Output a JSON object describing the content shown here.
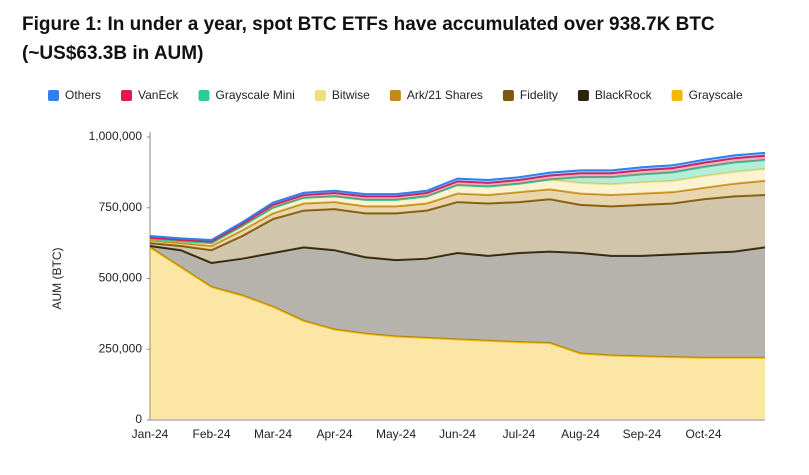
{
  "chart_data": {
    "type": "stacked_area",
    "title": "Figure 1: In under a year, spot BTC ETFs have accumulated over 938.7K BTC (~US$63.3B in AUM)",
    "y_label": "AUM (BTC)",
    "categories": [
      "Jan-24",
      null,
      "Feb-24",
      null,
      "Mar-24",
      null,
      "Apr-24",
      null,
      "May-24",
      null,
      "Jun-24",
      null,
      "Jul-24",
      null,
      "Aug-24",
      null,
      "Sep-24",
      null,
      "Oct-24",
      null,
      null
    ],
    "ylim": [
      0,
      1000000
    ],
    "yticks": [
      0,
      {
        "value": 250000,
        "label": "250,000"
      },
      {
        "value": 500000,
        "label": "500,000"
      },
      {
        "value": 750000,
        "label": "750,000"
      },
      {
        "value": 1000000,
        "label": "1,000,000"
      }
    ],
    "series": [
      {
        "name": "Others",
        "color": "#2f80ed",
        "values": [
          5000,
          5000,
          5000,
          6000,
          8000,
          8000,
          8000,
          8000,
          8000,
          8000,
          10000,
          10000,
          10000,
          10000,
          10000,
          10000,
          10000,
          10000,
          10000,
          10000,
          10000
        ]
      },
      {
        "name": "VanEck",
        "color": "#e0194e",
        "values": [
          5000,
          5000,
          6000,
          8000,
          10000,
          10000,
          12000,
          12000,
          12000,
          12000,
          13000,
          13000,
          13000,
          14000,
          14000,
          14000,
          15000,
          15000,
          15000,
          15000,
          15000
        ]
      },
      {
        "name": "Grayscale Mini",
        "color": "#2ecc8f",
        "values": [
          0,
          0,
          0,
          0,
          0,
          0,
          0,
          0,
          0,
          0,
          0,
          0,
          0,
          0,
          20000,
          25000,
          28000,
          30000,
          32000,
          33000,
          32000
        ]
      },
      {
        "name": "Bitwise",
        "color": "#f3dc7a",
        "values": [
          5000,
          7000,
          10000,
          15000,
          20000,
          20000,
          20000,
          23000,
          23000,
          25000,
          30000,
          30000,
          30000,
          35000,
          38000,
          38000,
          40000,
          40000,
          42000,
          42000,
          42000
        ]
      },
      {
        "name": "Ark/21 Shares",
        "color": "#c08a1a",
        "values": [
          10000,
          10000,
          15000,
          20000,
          20000,
          25000,
          25000,
          25000,
          25000,
          25000,
          30000,
          30000,
          35000,
          35000,
          40000,
          40000,
          40000,
          40000,
          40000,
          45000,
          50000
        ]
      },
      {
        "name": "Fidelity",
        "color": "#7a5a10",
        "values": [
          10000,
          15000,
          45000,
          80000,
          120000,
          130000,
          145000,
          155000,
          165000,
          170000,
          180000,
          185000,
          180000,
          185000,
          170000,
          175000,
          180000,
          180000,
          190000,
          195000,
          185000
        ]
      },
      {
        "name": "BlackRock",
        "color": "#2b2410",
        "values": [
          5000,
          60000,
          85000,
          130000,
          190000,
          260000,
          280000,
          270000,
          270000,
          280000,
          305000,
          300000,
          315000,
          323000,
          355000,
          352000,
          355000,
          363000,
          370000,
          375000,
          390000
        ]
      },
      {
        "name": "Grayscale",
        "color": "#f5b800",
        "values": [
          610000,
          540000,
          470000,
          440000,
          400000,
          350000,
          320000,
          305000,
          295000,
          290000,
          285000,
          280000,
          275000,
          272000,
          235000,
          228000,
          225000,
          222000,
          220000,
          220000,
          220000
        ]
      }
    ]
  }
}
